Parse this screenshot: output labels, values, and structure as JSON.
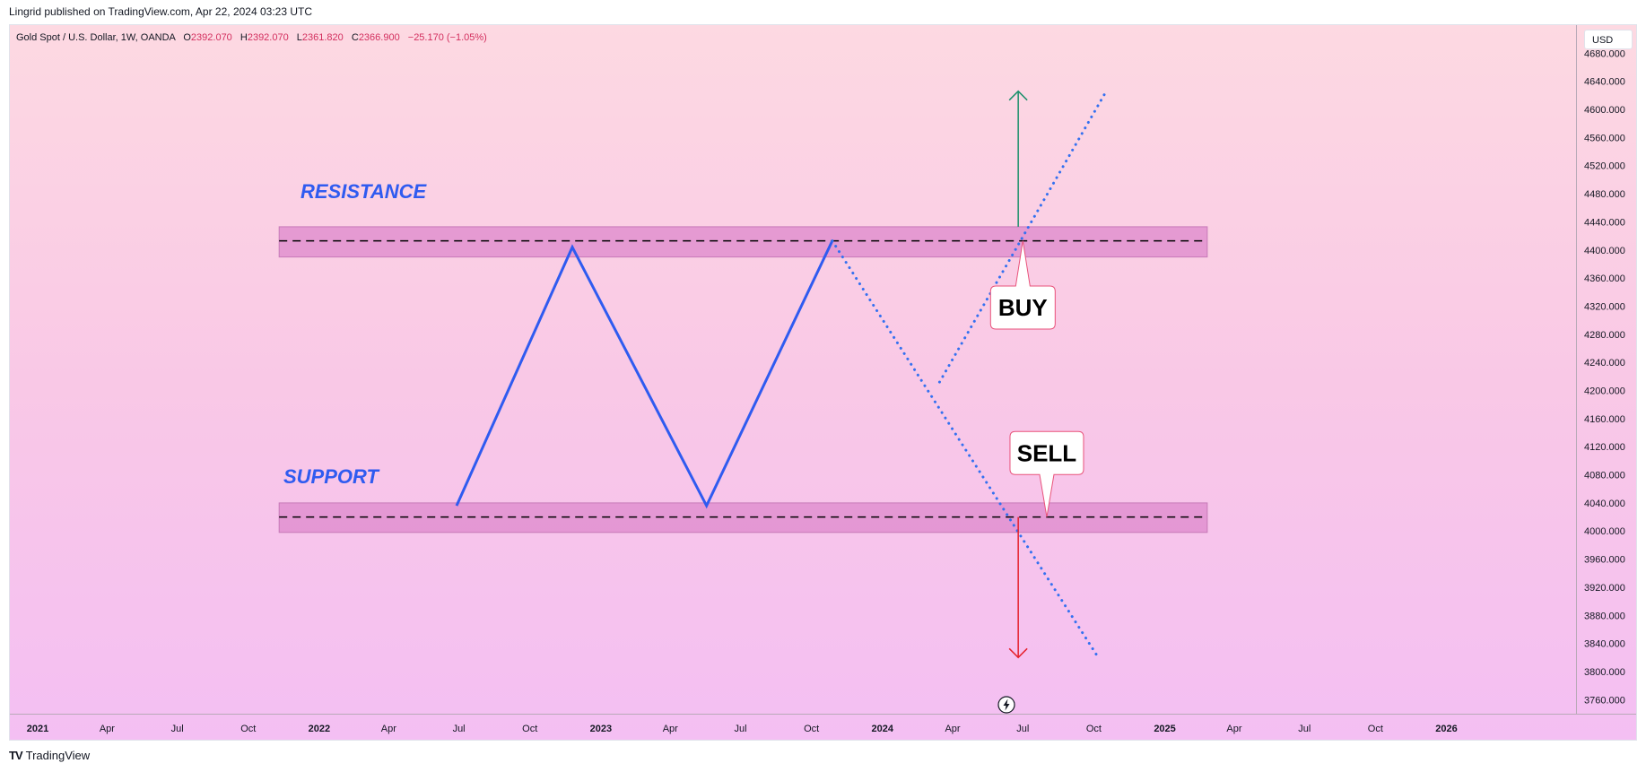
{
  "publisher": "Lingrid published on TradingView.com, Apr 22, 2024 03:23 UTC",
  "legend": {
    "symbol": "Gold Spot / U.S. Dollar, 1W, OANDA",
    "o_label": "O",
    "o_value": "2392.070",
    "h_label": "H",
    "h_value": "2392.070",
    "l_label": "L",
    "l_value": "2361.820",
    "c_label": "C",
    "c_value": "2366.900",
    "change": "−25.170 (−1.05%)"
  },
  "currency": "USD",
  "footer": {
    "logo": "TV",
    "brand": "TradingView"
  },
  "lightning_icon": "lightning-icon",
  "colors": {
    "zone_fill": "#dd88cc",
    "zone_line": "#000000",
    "pattern_line": "#2f5bf0",
    "projection_line": "#3370f0",
    "buy_arrow": "#1a8f6a",
    "sell_arrow": "#e5202b",
    "label_text": "#2f5bf0"
  },
  "chart_data": {
    "type": "line",
    "title": "Gold Spot / U.S. Dollar, 1W, OANDA",
    "xlabel": "",
    "ylabel": "",
    "y_ticks": [
      "4680.000",
      "4640.000",
      "4600.000",
      "4560.000",
      "4520.000",
      "4480.000",
      "4440.000",
      "4400.000",
      "4360.000",
      "4320.000",
      "4280.000",
      "4240.000",
      "4200.000",
      "4160.000",
      "4120.000",
      "4080.000",
      "4040.000",
      "4000.000",
      "3960.000",
      "3920.000",
      "3880.000",
      "3840.000",
      "3800.000",
      "3760.000"
    ],
    "ylim": [
      3740,
      4720
    ],
    "x_ticks": [
      {
        "label": "2021",
        "year": true
      },
      {
        "label": "Apr",
        "year": false
      },
      {
        "label": "Jul",
        "year": false
      },
      {
        "label": "Oct",
        "year": false
      },
      {
        "label": "2022",
        "year": true
      },
      {
        "label": "Apr",
        "year": false
      },
      {
        "label": "Jul",
        "year": false
      },
      {
        "label": "Oct",
        "year": false
      },
      {
        "label": "2023",
        "year": true
      },
      {
        "label": "Apr",
        "year": false
      },
      {
        "label": "Jul",
        "year": false
      },
      {
        "label": "Oct",
        "year": false
      },
      {
        "label": "2024",
        "year": true
      },
      {
        "label": "Apr",
        "year": false
      },
      {
        "label": "Jul",
        "year": false
      },
      {
        "label": "Oct",
        "year": false
      },
      {
        "label": "2025",
        "year": true
      },
      {
        "label": "Apr",
        "year": false
      },
      {
        "label": "Jul",
        "year": false
      },
      {
        "label": "Oct",
        "year": false
      },
      {
        "label": "2026",
        "year": true
      }
    ],
    "xlim": [
      "2021-01-01",
      "2026-05-06"
    ],
    "resistance_zone": {
      "label": "RESISTANCE",
      "low": 4390,
      "high": 4433,
      "level": 4413,
      "start": "2021-11-10",
      "end": "2025-02-25"
    },
    "support_zone": {
      "label": "SUPPORT",
      "low": 3998,
      "high": 4040,
      "level": 4020,
      "start": "2021-11-10",
      "end": "2025-02-25"
    },
    "double_top": [
      {
        "x": "2022-06-28",
        "y": 4036
      },
      {
        "x": "2022-11-25",
        "y": 4404
      },
      {
        "x": "2023-05-18",
        "y": 4036
      },
      {
        "x": "2023-10-28",
        "y": 4413
      }
    ],
    "projections": [
      {
        "name": "sell_path",
        "points": [
          {
            "x": "2023-10-28",
            "y": 4413
          },
          {
            "x": "2024-10-05",
            "y": 3823
          }
        ]
      },
      {
        "name": "buy_path",
        "points": [
          {
            "x": "2024-03-15",
            "y": 4212
          },
          {
            "x": "2024-10-15",
            "y": 4622
          }
        ]
      }
    ],
    "buy_arrow": {
      "x": "2024-06-25",
      "from": 4433,
      "to": 4626
    },
    "sell_arrow": {
      "x": "2024-06-25",
      "from": 4020,
      "to": 3820
    },
    "callouts": [
      {
        "text": "BUY",
        "x": "2024-07-01",
        "y": 4318,
        "target_y": 4413
      },
      {
        "text": "SELL",
        "x": "2024-08-01",
        "y": 4111,
        "target_y": 4020
      }
    ]
  }
}
